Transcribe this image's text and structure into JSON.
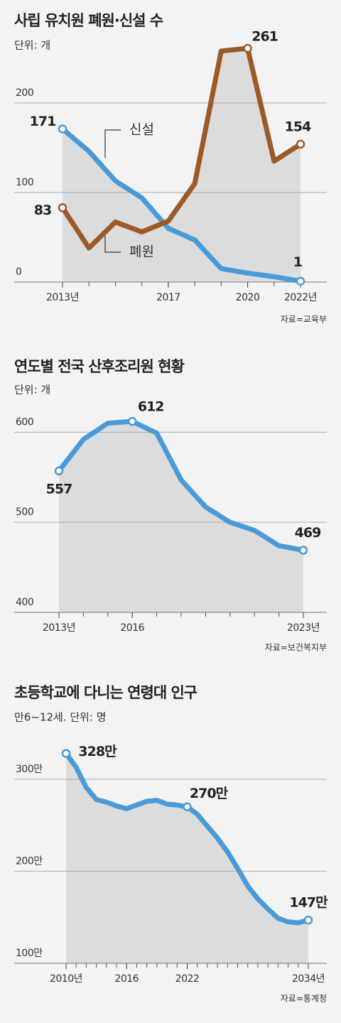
{
  "chart_data": [
    {
      "type": "line",
      "title": "사립 유치원 폐원·신설 수",
      "subtitle": "단위: 개",
      "source": "자료=교육부",
      "x": [
        2013,
        2014,
        2015,
        2016,
        2017,
        2018,
        2019,
        2020,
        2021,
        2022
      ],
      "series": [
        {
          "name": "신설",
          "color": "#4a9ad8",
          "values": [
            171,
            146,
            113,
            94,
            60,
            47,
            15,
            10,
            6,
            1
          ]
        },
        {
          "name": "폐원",
          "color": "#9a5a2a",
          "values": [
            83,
            38,
            67,
            56,
            68,
            110,
            258,
            261,
            135,
            154
          ]
        }
      ],
      "xlim": [
        2013,
        2022
      ],
      "xticks": [
        {
          "value": 2013,
          "label": "2013년"
        },
        2017,
        2020,
        {
          "value": 2022,
          "label": "2022년"
        }
      ],
      "ylim": [
        0,
        265
      ],
      "yticks": [
        0,
        100,
        200
      ],
      "grid": true
    },
    {
      "type": "line",
      "title": "연도별 전국 산후조리원 현황",
      "subtitle": "단위: 개",
      "source": "자료=보건복지부",
      "x": [
        2013,
        2014,
        2015,
        2016,
        2017,
        2018,
        2019,
        2020,
        2021,
        2022,
        2023
      ],
      "values": [
        557,
        592,
        610,
        612,
        599,
        547,
        517,
        500,
        491,
        474,
        469
      ],
      "color": "#4a9ad8",
      "xlim": [
        2013,
        2023
      ],
      "xticks": [
        {
          "value": 2013,
          "label": "2013년"
        },
        2016,
        {
          "value": 2023,
          "label": "2023년"
        }
      ],
      "ylim": [
        400,
        620
      ],
      "yticks": [
        400,
        500,
        600
      ],
      "grid": true
    },
    {
      "type": "line",
      "title": "초등학교에 다니는 연령대 인구",
      "subtitle": "만6~12세. 단위: 명",
      "source": "자료=통계청",
      "x": [
        2010,
        2011,
        2012,
        2013,
        2014,
        2015,
        2016,
        2017,
        2018,
        2019,
        2020,
        2021,
        2022,
        2023,
        2024,
        2025,
        2026,
        2027,
        2028,
        2029,
        2030,
        2031,
        2032,
        2033,
        2034
      ],
      "values": [
        328,
        313,
        291,
        278,
        275,
        271,
        268,
        272,
        276,
        277,
        273,
        272,
        270,
        262,
        249,
        236,
        221,
        203,
        184,
        170,
        159,
        149,
        145,
        144,
        147
      ],
      "value_labels": {
        "0": "328만",
        "12": "270만",
        "24": "147만"
      },
      "color": "#4a9ad8",
      "xlim": [
        2010,
        2034
      ],
      "xticks": [
        {
          "value": 2010,
          "label": "2010년"
        },
        2016,
        2022,
        {
          "value": 2034,
          "label": "2034년"
        }
      ],
      "ylim": [
        100,
        330
      ],
      "yticks": [
        {
          "value": 100,
          "label": "100만"
        },
        {
          "value": 200,
          "label": "200만"
        },
        {
          "value": 300,
          "label": "300만"
        }
      ],
      "grid": true
    }
  ]
}
